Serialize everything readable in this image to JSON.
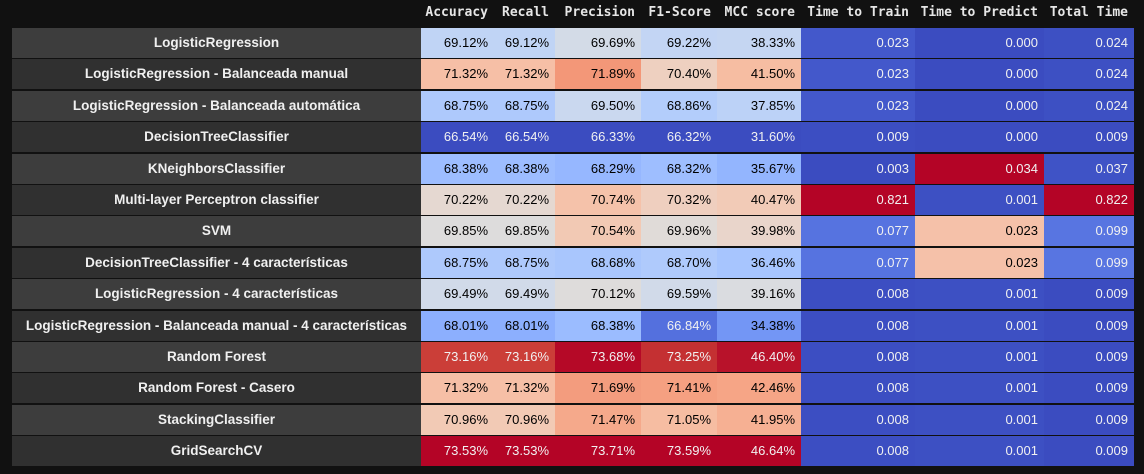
{
  "columns": [
    "Accuracy",
    "Recall",
    "Precision",
    "F1-Score",
    "MCC score",
    "Time to Train",
    "Time to Predict",
    "Total Time"
  ],
  "rows": [
    {
      "label": "LogisticRegression",
      "cells": [
        "69.12%",
        "69.12%",
        "69.69%",
        "69.22%",
        "38.33%",
        "0.023",
        "0.000",
        "0.024"
      ],
      "colors": [
        "#c0d4f5",
        "#c0d4f5",
        "#d3dbe7",
        "#c3d5f4",
        "#c5d6f2",
        "#4358cb",
        "#3b4cc0",
        "#3d50c3"
      ]
    },
    {
      "label": "LogisticRegression - Balanceada manual",
      "cells": [
        "71.32%",
        "71.32%",
        "71.89%",
        "70.40%",
        "41.50%",
        "0.023",
        "0.000",
        "0.024"
      ],
      "colors": [
        "#f6bfa6",
        "#f6bfa6",
        "#f39778",
        "#eed0c0",
        "#f6bda2",
        "#4358cb",
        "#3b4cc0",
        "#3d50c3"
      ]
    },
    {
      "label": "LogisticRegression - Balanceada automática",
      "cells": [
        "68.75%",
        "68.75%",
        "69.50%",
        "68.86%",
        "37.85%",
        "0.023",
        "0.000",
        "0.024"
      ],
      "colors": [
        "#aec9fc",
        "#aec9fc",
        "#cad8ef",
        "#b3cdfb",
        "#bcd2f7",
        "#4358cb",
        "#3b4cc0",
        "#3d50c3"
      ]
    },
    {
      "label": "DecisionTreeClassifier",
      "cells": [
        "66.54%",
        "66.54%",
        "66.33%",
        "66.32%",
        "31.60%",
        "0.009",
        "0.000",
        "0.009"
      ],
      "colors": [
        "#3b4cc0",
        "#3b4cc0",
        "#3b4cc0",
        "#3b4cc0",
        "#3b4cc0",
        "#3c4ec2",
        "#3b4cc0",
        "#3b4cc0"
      ]
    },
    {
      "label": "KNeighborsClassifier",
      "cells": [
        "68.38%",
        "68.38%",
        "68.29%",
        "68.32%",
        "35.67%",
        "0.003",
        "0.034",
        "0.037"
      ],
      "colors": [
        "#9dbdff",
        "#9dbdff",
        "#96b7ff",
        "#9ebeff",
        "#93b5fe",
        "#3b4cc0",
        "#b40426",
        "#3f53c6"
      ]
    },
    {
      "label": "Multi-layer Perceptron classifier",
      "cells": [
        "70.22%",
        "70.22%",
        "70.74%",
        "70.32%",
        "40.47%",
        "0.821",
        "0.001",
        "0.822"
      ],
      "colors": [
        "#e5d8d1",
        "#e5d8d1",
        "#f5c2aa",
        "#efcfbf",
        "#f2cbb7",
        "#b40426",
        "#3d50c3",
        "#b40426"
      ]
    },
    {
      "label": "SVM",
      "cells": [
        "69.85%",
        "69.85%",
        "70.54%",
        "69.96%",
        "39.98%",
        "0.077",
        "0.023",
        "0.099"
      ],
      "colors": [
        "#dddcdc",
        "#dddcdc",
        "#f2c9b4",
        "#e0dbd8",
        "#e9d5cb",
        "#5673e0",
        "#f5c1a9",
        "#5875e1"
      ]
    },
    {
      "label": "DecisionTreeClassifier - 4 características",
      "cells": [
        "68.75%",
        "68.75%",
        "68.68%",
        "68.70%",
        "36.46%",
        "0.077",
        "0.023",
        "0.099"
      ],
      "colors": [
        "#aec9fc",
        "#aec9fc",
        "#a9c6fd",
        "#afcafc",
        "#a7c5fe",
        "#5673e0",
        "#f5c1a9",
        "#5875e1"
      ]
    },
    {
      "label": "LogisticRegression - 4 características",
      "cells": [
        "69.49%",
        "69.49%",
        "70.12%",
        "69.59%",
        "39.16%",
        "0.008",
        "0.001",
        "0.009"
      ],
      "colors": [
        "#d1dae9",
        "#d1dae9",
        "#dedcdb",
        "#d1dae9",
        "#dadce0",
        "#3c4ec2",
        "#3d50c3",
        "#3b4cc0"
      ]
    },
    {
      "label": "LogisticRegression - Balanceada manual - 4 características",
      "cells": [
        "68.01%",
        "68.01%",
        "68.38%",
        "66.84%",
        "34.38%",
        "0.008",
        "0.001",
        "0.009"
      ],
      "colors": [
        "#8caffe",
        "#8caffe",
        "#9bbcff",
        "#5470de",
        "#7396f5",
        "#3c4ec2",
        "#3d50c3",
        "#3b4cc0"
      ]
    },
    {
      "label": "Random Forest",
      "cells": [
        "73.16%",
        "73.16%",
        "73.68%",
        "73.25%",
        "46.40%",
        "0.008",
        "0.001",
        "0.009"
      ],
      "colors": [
        "#cb3e38",
        "#cb3e38",
        "#b50927",
        "#c43032",
        "#b8122a",
        "#3c4ec2",
        "#3d50c3",
        "#3b4cc0"
      ]
    },
    {
      "label": "Random Forest - Casero",
      "cells": [
        "71.32%",
        "71.32%",
        "71.69%",
        "71.41%",
        "42.46%",
        "0.008",
        "0.001",
        "0.009"
      ],
      "colors": [
        "#f6bfa6",
        "#f6bfa6",
        "#f39c7e",
        "#f5a081",
        "#f6a586",
        "#3c4ec2",
        "#3d50c3",
        "#3b4cc0"
      ]
    },
    {
      "label": "StackingClassifier",
      "cells": [
        "70.96%",
        "70.96%",
        "71.47%",
        "71.05%",
        "41.95%",
        "0.008",
        "0.001",
        "0.009"
      ],
      "colors": [
        "#f2cab5",
        "#f2cab5",
        "#f5a98b",
        "#f6bda2",
        "#f6b093",
        "#3c4ec2",
        "#3d50c3",
        "#3b4cc0"
      ]
    },
    {
      "label": "GridSearchCV",
      "cells": [
        "73.53%",
        "73.53%",
        "73.71%",
        "73.59%",
        "46.64%",
        "0.008",
        "0.001",
        "0.009"
      ],
      "colors": [
        "#b40426",
        "#b40426",
        "#b40426",
        "#b40426",
        "#b40426",
        "#3c4ec2",
        "#3d50c3",
        "#3b4cc0"
      ]
    }
  ],
  "header_bg": "#111111",
  "rowhead_colors": [
    "#3d3d3d",
    "#303030"
  ]
}
